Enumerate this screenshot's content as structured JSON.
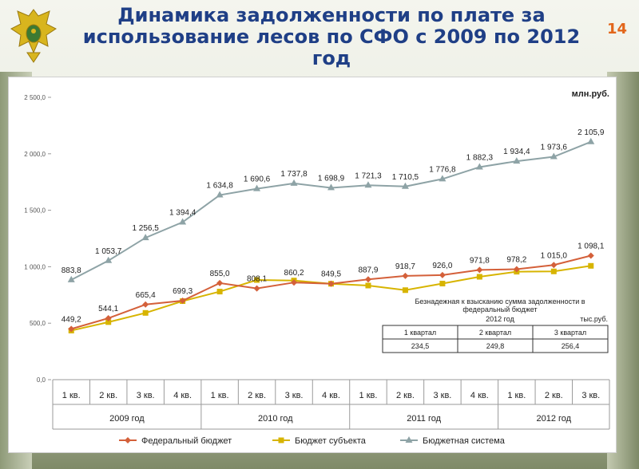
{
  "header": {
    "title_line1": "Динамика задолженности по плате за",
    "title_line2": "использование лесов по СФО с 2009 по 2012",
    "title_line3": "год",
    "page_number": "14"
  },
  "chart_data": {
    "type": "line",
    "unit_label": "млн.руб.",
    "categories": [
      "1 кв.",
      "2 кв.",
      "3 кв.",
      "4 кв.",
      "1 кв.",
      "2 кв.",
      "3 кв.",
      "4 кв.",
      "1 кв.",
      "2 кв.",
      "3 кв.",
      "4 кв.",
      "1 кв.",
      "2 кв.",
      "3 кв."
    ],
    "years": [
      {
        "label": "2009 год",
        "span": 4
      },
      {
        "label": "2010 год",
        "span": 4
      },
      {
        "label": "2011 год",
        "span": 4
      },
      {
        "label": "2012 год",
        "span": 3
      }
    ],
    "yticks": [
      "0,0",
      "500,0",
      "1 000,0",
      "1 500,0",
      "2 000,0",
      "2 500,0"
    ],
    "ylim": [
      0,
      2500
    ],
    "series": [
      {
        "name": "Федеральный бюджет",
        "color": "#d4603a",
        "marker": "diamond",
        "values": [
          449.2,
          544.1,
          665.4,
          699.3,
          855.0,
          808.1,
          860.2,
          849.5,
          887.9,
          918.7,
          926.0,
          971.8,
          978.2,
          1015.0,
          1098.1
        ],
        "labels": [
          "449,2",
          "544,1",
          "665,4",
          "699,3",
          "855,0",
          "808,1",
          "860,2",
          "849,5",
          "887,9",
          "918,7",
          "926,0",
          "971,8",
          "978,2",
          "1 015,0",
          "1 098,1"
        ]
      },
      {
        "name": "Бюджет субъекта",
        "color": "#d7b400",
        "marker": "square",
        "values": [
          434.6,
          509.6,
          591.1,
          695.5,
          779.8,
          882.5,
          877.6,
          849.2,
          833.4,
          792.6,
          850.8,
          911.0,
          956.0,
          958.6,
          1007.8
        ],
        "labels": []
      },
      {
        "name": "Бюджетная система",
        "color": "#8ea3a6",
        "marker": "triangle",
        "values": [
          883.8,
          1053.7,
          1256.5,
          1394.4,
          1634.8,
          1690.6,
          1737.8,
          1698.9,
          1721.3,
          1710.5,
          1776.8,
          1882.3,
          1934.4,
          1973.6,
          2105.9
        ],
        "labels": [
          "883,8",
          "1 053,7",
          "1 256,5",
          "1 394,4",
          "1 634,8",
          "1 690,6",
          "1 737,8",
          "1 698,9",
          "1 721,3",
          "1 710,5",
          "1 776,8",
          "1 882,3",
          "1 934,4",
          "1 973,6",
          "2 105,9"
        ]
      }
    ]
  },
  "inset_table": {
    "title_line1": "Безнадежная к взысканию сумма задолженности в",
    "title_line2": "федеральный бюджет",
    "year": "2012 год",
    "unit": "тыс.руб.",
    "headers": [
      "1 квартал",
      "2 квартал",
      "3 квартал"
    ],
    "values": [
      "234,5",
      "249,8",
      "256,4"
    ]
  }
}
